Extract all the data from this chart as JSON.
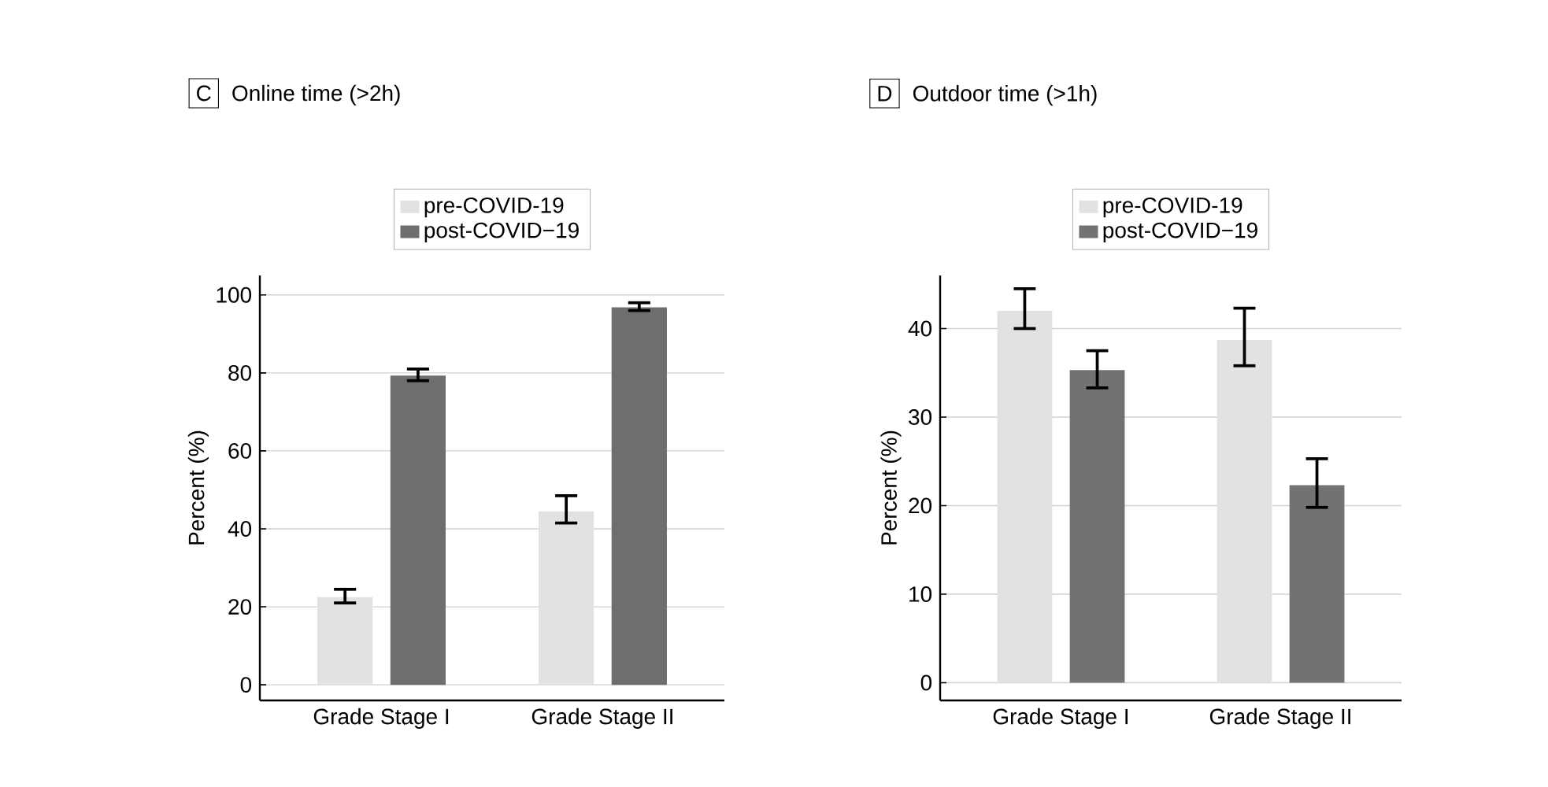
{
  "chart_data": [
    {
      "type": "bar",
      "title": "Online time (>2h)",
      "annotations": [
        "C"
      ],
      "ylabel": "Percent (%)",
      "categories": [
        "Grade Stage I",
        "Grade Stage II"
      ],
      "series": [
        {
          "name": "pre-COVID-19",
          "color": "#e2e2e2",
          "values": [
            22.5,
            44.5
          ],
          "errors": [
            [
              21,
              24.5
            ],
            [
              41.5,
              48.5
            ]
          ]
        },
        {
          "name": "post-COVID−19",
          "color": "#6e6e6e",
          "values": [
            79.3,
            96.8
          ],
          "errors": [
            [
              78,
              81
            ],
            [
              96,
              98
            ]
          ]
        }
      ],
      "ylim": [
        -4,
        105
      ],
      "yticks": [
        0,
        20,
        40,
        60,
        80,
        100
      ],
      "grid": "y",
      "legend": "top"
    },
    {
      "type": "bar",
      "title": "Outdoor time (>1h)",
      "annotations": [
        "D"
      ],
      "ylabel": "Percent (%)",
      "categories": [
        "Grade Stage I",
        "Grade Stage II"
      ],
      "series": [
        {
          "name": "pre-COVID-19",
          "color": "#e2e2e2",
          "values": [
            42,
            38.7
          ],
          "errors": [
            [
              40,
              44.5
            ],
            [
              35.8,
              42.3
            ]
          ]
        },
        {
          "name": "post-COVID−19",
          "color": "#727272",
          "values": [
            35.3,
            22.3
          ],
          "errors": [
            [
              33.3,
              37.5
            ],
            [
              19.8,
              25.3
            ]
          ]
        }
      ],
      "ylim": [
        -2,
        46
      ],
      "yticks": [
        0,
        10,
        20,
        30,
        40
      ],
      "grid": "y",
      "legend": "top"
    }
  ]
}
